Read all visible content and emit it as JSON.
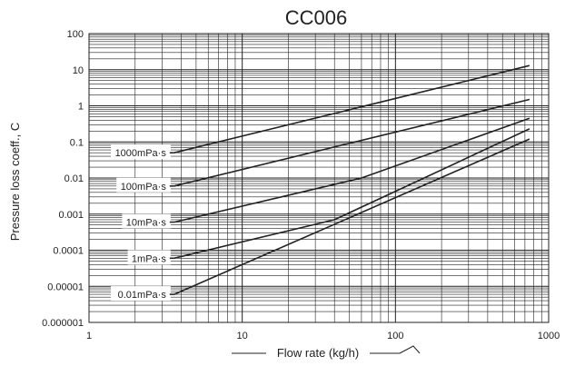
{
  "chart_data": {
    "type": "line",
    "title": "CC006",
    "xlabel": "Flow rate (kg/h)",
    "ylabel": "Pressure loss coeff., C",
    "x_scale": "log",
    "y_scale": "log",
    "xlim": [
      1,
      1000
    ],
    "ylim": [
      1e-06,
      100
    ],
    "x_ticks": [
      "1",
      "10",
      "100",
      "1000"
    ],
    "y_ticks": [
      "0.000001",
      "0.00001",
      "0.0001",
      "0.001",
      "0.01",
      "0.1",
      "1",
      "10",
      "100"
    ],
    "grid": true,
    "series": [
      {
        "name": "1000mPa·s",
        "x": [
          3.6,
          750
        ],
        "y": [
          0.05,
          13
        ]
      },
      {
        "name": "100mPa·s",
        "x": [
          3.6,
          750
        ],
        "y": [
          0.006,
          1.5
        ]
      },
      {
        "name": "10mPa·s",
        "x": [
          3.6,
          60,
          750
        ],
        "y": [
          0.0006,
          0.01,
          0.45
        ]
      },
      {
        "name": "1mPa·s",
        "x": [
          3.6,
          40,
          750
        ],
        "y": [
          6e-05,
          0.0007,
          0.23
        ]
      },
      {
        "name": "0.01mPa·s",
        "x": [
          3.6,
          750
        ],
        "y": [
          6e-06,
          0.12
        ]
      }
    ],
    "line_color": "#222222",
    "grid_color": "#222222"
  }
}
